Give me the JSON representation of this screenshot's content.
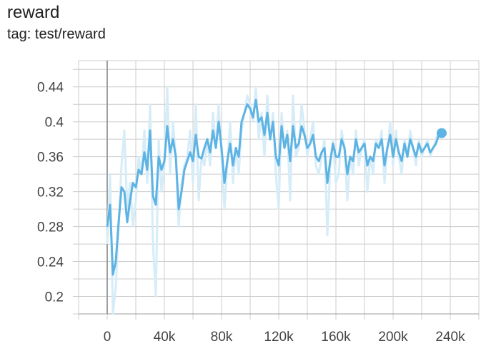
{
  "header": {
    "title": "reward",
    "subtitle": "tag: test/reward"
  },
  "colors": {
    "series": "#5db3e3",
    "series_raw": "#d6ecf8",
    "grid": "#cccccc",
    "zero_axis": "#9e9e9e"
  },
  "chart_data": {
    "type": "line",
    "title": "reward",
    "subtitle": "tag: test/reward",
    "xlabel": "",
    "ylabel": "",
    "xlim": [
      -20000,
      260000
    ],
    "ylim": [
      0.18,
      0.47
    ],
    "x_ticks": [
      0,
      40000,
      80000,
      120000,
      160000,
      200000,
      240000
    ],
    "x_tick_labels": [
      "0",
      "40k",
      "80k",
      "120k",
      "160k",
      "200k",
      "240k"
    ],
    "y_ticks": [
      0.2,
      0.24,
      0.28,
      0.32,
      0.36,
      0.4,
      0.44
    ],
    "y_tick_labels": [
      "0.2",
      "0.24",
      "0.28",
      "0.32",
      "0.36",
      "0.4",
      "0.44"
    ],
    "grid": true,
    "legend": "none",
    "series": [
      {
        "style": "raw",
        "x": [
          0,
          2000,
          4000,
          6000,
          8000,
          10000,
          12000,
          14000,
          16000,
          18000,
          20000,
          22000,
          24000,
          26000,
          28000,
          30000,
          32000,
          34000,
          36000,
          38000,
          40000,
          42000,
          44000,
          46000,
          48000,
          50000,
          52000,
          54000,
          56000,
          58000,
          60000,
          62000,
          64000,
          66000,
          68000,
          70000,
          72000,
          74000,
          76000,
          78000,
          80000,
          82000,
          84000,
          86000,
          88000,
          90000,
          92000,
          94000,
          96000,
          98000,
          100000,
          102000,
          104000,
          106000,
          108000,
          110000,
          112000,
          114000,
          116000,
          118000,
          120000,
          122000,
          124000,
          126000,
          128000,
          130000,
          132000,
          134000,
          136000,
          138000,
          140000,
          142000,
          144000,
          146000,
          148000,
          150000,
          152000,
          154000,
          156000,
          158000,
          160000,
          162000,
          164000,
          166000,
          168000,
          170000,
          172000,
          174000,
          176000,
          178000,
          180000,
          182000,
          184000,
          186000,
          188000,
          190000,
          192000,
          194000,
          196000,
          198000,
          200000,
          202000,
          204000,
          206000,
          208000,
          210000,
          212000,
          214000,
          216000,
          218000,
          220000,
          222000,
          224000,
          226000,
          228000,
          230000,
          232000,
          234000
        ],
        "y": [
          0.26,
          0.34,
          0.18,
          0.21,
          0.28,
          0.35,
          0.39,
          0.3,
          0.33,
          0.28,
          0.31,
          0.36,
          0.34,
          0.39,
          0.33,
          0.42,
          0.26,
          0.2,
          0.38,
          0.32,
          0.35,
          0.44,
          0.34,
          0.4,
          0.36,
          0.28,
          0.33,
          0.35,
          0.36,
          0.39,
          0.33,
          0.42,
          0.31,
          0.36,
          0.35,
          0.38,
          0.35,
          0.41,
          0.37,
          0.42,
          0.36,
          0.3,
          0.35,
          0.4,
          0.33,
          0.37,
          0.34,
          0.39,
          0.41,
          0.43,
          0.42,
          0.4,
          0.44,
          0.38,
          0.41,
          0.36,
          0.43,
          0.38,
          0.41,
          0.34,
          0.3,
          0.41,
          0.37,
          0.39,
          0.31,
          0.43,
          0.36,
          0.37,
          0.42,
          0.39,
          0.36,
          0.38,
          0.4,
          0.35,
          0.34,
          0.36,
          0.38,
          0.27,
          0.35,
          0.38,
          0.33,
          0.34,
          0.39,
          0.37,
          0.31,
          0.36,
          0.34,
          0.39,
          0.35,
          0.37,
          0.38,
          0.32,
          0.36,
          0.34,
          0.38,
          0.37,
          0.39,
          0.33,
          0.37,
          0.4,
          0.35,
          0.39,
          0.36,
          0.34,
          0.38,
          0.36,
          0.39,
          0.37,
          0.35,
          0.38,
          0.36,
          0.37,
          0.38,
          0.36,
          0.37,
          0.38,
          0.39,
          0.39
        ]
      },
      {
        "style": "smoothed",
        "x": [
          0,
          2000,
          4000,
          6000,
          8000,
          10000,
          12000,
          14000,
          16000,
          18000,
          20000,
          22000,
          24000,
          26000,
          28000,
          30000,
          32000,
          34000,
          36000,
          38000,
          40000,
          42000,
          44000,
          46000,
          48000,
          50000,
          52000,
          54000,
          56000,
          58000,
          60000,
          62000,
          64000,
          66000,
          68000,
          70000,
          72000,
          74000,
          76000,
          78000,
          80000,
          82000,
          84000,
          86000,
          88000,
          90000,
          92000,
          94000,
          96000,
          98000,
          100000,
          102000,
          104000,
          106000,
          108000,
          110000,
          112000,
          114000,
          116000,
          118000,
          120000,
          122000,
          124000,
          126000,
          128000,
          130000,
          132000,
          134000,
          136000,
          138000,
          140000,
          142000,
          144000,
          146000,
          148000,
          150000,
          152000,
          154000,
          156000,
          158000,
          160000,
          162000,
          164000,
          166000,
          168000,
          170000,
          172000,
          174000,
          176000,
          178000,
          180000,
          182000,
          184000,
          186000,
          188000,
          190000,
          192000,
          194000,
          196000,
          198000,
          200000,
          202000,
          204000,
          206000,
          208000,
          210000,
          212000,
          214000,
          216000,
          218000,
          220000,
          222000,
          224000,
          226000,
          228000,
          230000,
          232000,
          234000
        ],
        "y": [
          0.28,
          0.305,
          0.225,
          0.24,
          0.285,
          0.325,
          0.32,
          0.285,
          0.31,
          0.33,
          0.325,
          0.345,
          0.34,
          0.365,
          0.345,
          0.39,
          0.315,
          0.305,
          0.36,
          0.345,
          0.355,
          0.395,
          0.365,
          0.38,
          0.36,
          0.3,
          0.32,
          0.345,
          0.355,
          0.365,
          0.355,
          0.385,
          0.36,
          0.358,
          0.37,
          0.38,
          0.365,
          0.39,
          0.37,
          0.4,
          0.37,
          0.33,
          0.355,
          0.375,
          0.35,
          0.37,
          0.36,
          0.4,
          0.41,
          0.42,
          0.415,
          0.405,
          0.425,
          0.4,
          0.405,
          0.385,
          0.41,
          0.38,
          0.4,
          0.36,
          0.35,
          0.395,
          0.37,
          0.385,
          0.355,
          0.395,
          0.37,
          0.375,
          0.395,
          0.385,
          0.37,
          0.375,
          0.385,
          0.36,
          0.355,
          0.365,
          0.37,
          0.33,
          0.355,
          0.375,
          0.36,
          0.36,
          0.38,
          0.37,
          0.34,
          0.36,
          0.355,
          0.38,
          0.365,
          0.37,
          0.375,
          0.35,
          0.36,
          0.355,
          0.375,
          0.37,
          0.38,
          0.35,
          0.37,
          0.385,
          0.36,
          0.38,
          0.365,
          0.355,
          0.375,
          0.36,
          0.38,
          0.37,
          0.36,
          0.375,
          0.365,
          0.37,
          0.375,
          0.365,
          0.37,
          0.375,
          0.385,
          0.387
        ]
      }
    ]
  }
}
